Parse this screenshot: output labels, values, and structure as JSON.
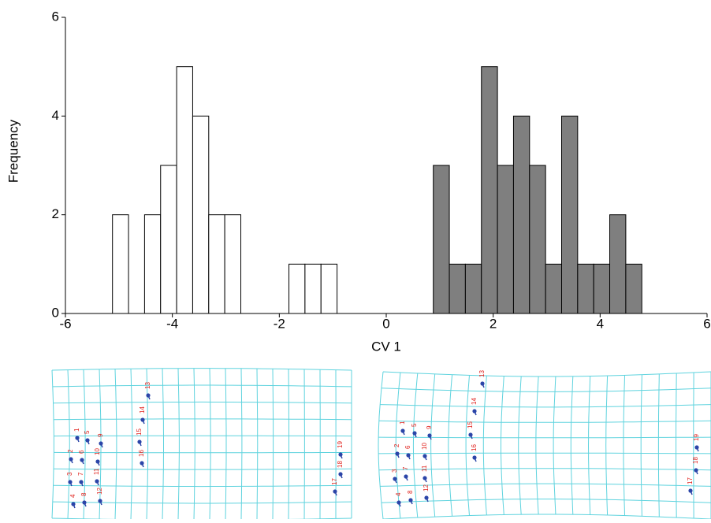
{
  "chart_data": {
    "type": "histogram",
    "xlabel": "CV 1",
    "ylabel": "Frequency",
    "series": [
      {
        "color": "#ffffff",
        "bins": [
          -5.12,
          -4.82,
          -4.52,
          -4.22,
          -3.92,
          -3.62,
          -3.32,
          -3.02,
          -2.72,
          -2.42,
          -2.12,
          -1.82,
          -1.52,
          -1.22,
          -0.92
        ],
        "values": [
          2,
          0,
          2,
          3,
          5,
          4,
          2,
          2,
          0,
          0,
          0,
          1,
          1,
          1
        ]
      },
      {
        "color": "#7f7f7f",
        "bins": [
          0.88,
          1.18,
          1.48,
          1.78,
          2.08,
          2.38,
          2.68,
          2.98,
          3.28,
          3.58,
          3.88,
          4.18,
          4.48,
          4.78
        ],
        "values": [
          3,
          1,
          1,
          5,
          3,
          4,
          3,
          1,
          4,
          1,
          1,
          2,
          1
        ]
      }
    ],
    "xlim": [
      -6,
      6
    ],
    "xticks": [
      -6,
      -4,
      -2,
      0,
      2,
      4,
      6
    ],
    "ylim": [
      0,
      6
    ],
    "yticks": [
      0,
      2,
      4,
      6
    ],
    "grid": false
  },
  "deformation_grids": [
    {
      "landmarks": [
        "1",
        "2",
        "3",
        "4",
        "5",
        "6",
        "7",
        "8",
        "9",
        "10",
        "11",
        "12",
        "13",
        "14",
        "15",
        "16",
        "17",
        "18",
        "19"
      ]
    },
    {
      "landmarks": [
        "1",
        "2",
        "3",
        "4",
        "5",
        "6",
        "7",
        "8",
        "9",
        "10",
        "11",
        "12",
        "13",
        "14",
        "15",
        "16",
        "17",
        "18",
        "19"
      ]
    }
  ]
}
